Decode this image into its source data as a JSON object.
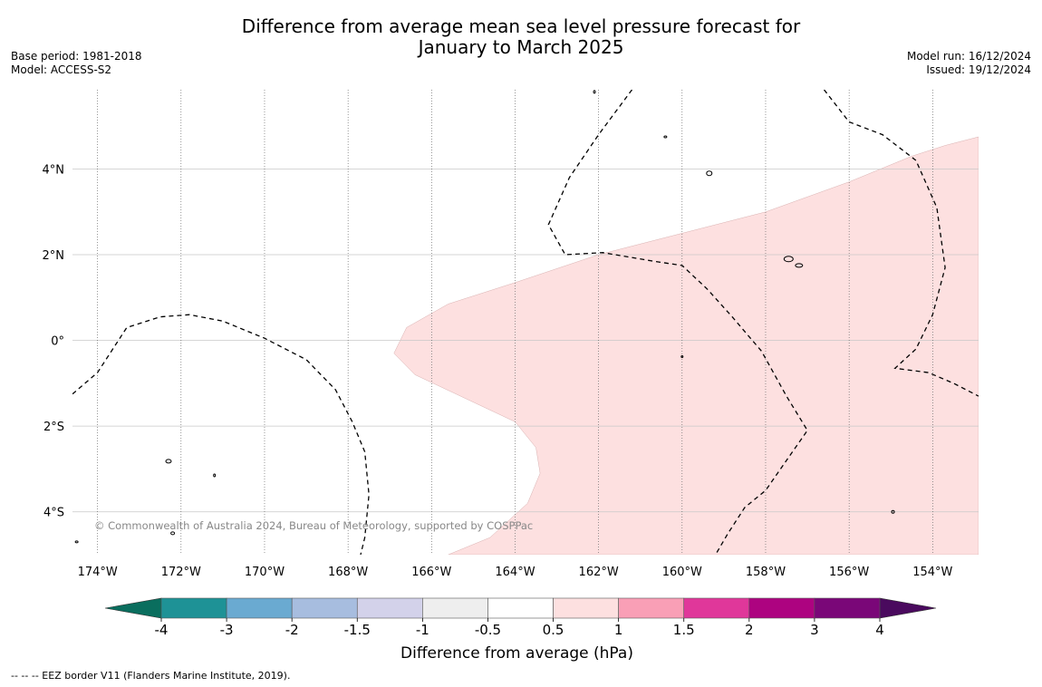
{
  "title": {
    "line1": "Difference from average mean sea level pressure forecast for",
    "line2": "January to March 2025"
  },
  "meta_left": {
    "base_period": "Base period: 1981-2018",
    "model": "Model: ACCESS-S2"
  },
  "meta_right": {
    "model_run": "Model run: 16/12/2024",
    "issued": "Issued: 19/12/2024"
  },
  "map": {
    "lon_range": [
      -174.6,
      -152.9
    ],
    "lat_range": [
      -5.0,
      5.85
    ],
    "lon_ticks": [
      {
        "value": -174,
        "label": "174°W"
      },
      {
        "value": -172,
        "label": "172°W"
      },
      {
        "value": -170,
        "label": "170°W"
      },
      {
        "value": -168,
        "label": "168°W"
      },
      {
        "value": -166,
        "label": "166°W"
      },
      {
        "value": -164,
        "label": "164°W"
      },
      {
        "value": -162,
        "label": "162°W"
      },
      {
        "value": -160,
        "label": "160°W"
      },
      {
        "value": -158,
        "label": "158°W"
      },
      {
        "value": -156,
        "label": "156°W"
      },
      {
        "value": -154,
        "label": "154°W"
      }
    ],
    "lat_ticks": [
      {
        "value": 4,
        "label": "4°N"
      },
      {
        "value": 2,
        "label": "2°N"
      },
      {
        "value": 0,
        "label": "0°"
      },
      {
        "value": -2,
        "label": "2°S"
      },
      {
        "value": -4,
        "label": "4°S"
      }
    ],
    "anomaly_region": {
      "category": "0.5 to 1",
      "color": "#fde0e0",
      "boundary": [
        [
          -165.6,
          -5.0
        ],
        [
          -164.6,
          -4.6
        ],
        [
          -163.7,
          -3.8
        ],
        [
          -163.4,
          -3.1
        ],
        [
          -163.5,
          -2.5
        ],
        [
          -164.0,
          -1.9
        ],
        [
          -166.4,
          -0.8
        ],
        [
          -166.9,
          -0.3
        ],
        [
          -166.6,
          0.3
        ],
        [
          -165.6,
          0.85
        ],
        [
          -164.0,
          1.35
        ],
        [
          -162.0,
          2.0
        ],
        [
          -160.0,
          2.5
        ],
        [
          -158.0,
          3.0
        ],
        [
          -156.0,
          3.7
        ],
        [
          -154.5,
          4.3
        ],
        [
          -153.7,
          4.55
        ],
        [
          -152.9,
          4.75
        ],
        [
          -152.9,
          -5.0
        ]
      ]
    },
    "eez_lines": [
      [
        [
          -174.6,
          -1.25
        ],
        [
          -174.0,
          -0.75
        ],
        [
          -173.3,
          0.3
        ],
        [
          -172.5,
          0.55
        ],
        [
          -171.8,
          0.6
        ],
        [
          -171.0,
          0.45
        ],
        [
          -170.0,
          0.05
        ],
        [
          -169.0,
          -0.45
        ],
        [
          -168.3,
          -1.15
        ],
        [
          -167.9,
          -1.9
        ],
        [
          -167.6,
          -2.6
        ],
        [
          -167.5,
          -3.6
        ],
        [
          -167.6,
          -4.6
        ],
        [
          -167.7,
          -5.0
        ]
      ],
      [
        [
          -161.2,
          5.85
        ],
        [
          -162.0,
          4.8
        ],
        [
          -162.7,
          3.8
        ],
        [
          -163.2,
          2.7
        ],
        [
          -162.8,
          2.0
        ],
        [
          -161.9,
          2.05
        ],
        [
          -160.7,
          1.85
        ],
        [
          -160.0,
          1.75
        ],
        [
          -159.4,
          1.2
        ],
        [
          -158.8,
          0.55
        ],
        [
          -158.1,
          -0.25
        ],
        [
          -157.5,
          -1.3
        ],
        [
          -157.0,
          -2.1
        ],
        [
          -157.5,
          -2.8
        ],
        [
          -158.0,
          -3.5
        ],
        [
          -158.5,
          -3.9
        ],
        [
          -158.9,
          -4.5
        ],
        [
          -159.2,
          -5.0
        ]
      ],
      [
        [
          -156.6,
          5.85
        ],
        [
          -156.0,
          5.1
        ],
        [
          -155.2,
          4.8
        ],
        [
          -154.4,
          4.2
        ],
        [
          -153.9,
          3.1
        ],
        [
          -153.7,
          1.7
        ],
        [
          -154.0,
          0.6
        ],
        [
          -154.4,
          -0.2
        ],
        [
          -154.9,
          -0.65
        ],
        [
          -154.1,
          -0.75
        ],
        [
          -153.5,
          -1.0
        ],
        [
          -152.9,
          -1.3
        ]
      ]
    ],
    "islands": [
      {
        "lon": -172.3,
        "lat": -2.82,
        "rx": 3,
        "ry": 2
      },
      {
        "lon": -171.2,
        "lat": -3.15,
        "rx": 1,
        "ry": 1.5
      },
      {
        "lon": -172.2,
        "lat": -4.5,
        "rx": 2,
        "ry": 1.5
      },
      {
        "lon": -174.5,
        "lat": -4.7,
        "rx": 1.5,
        "ry": 1
      },
      {
        "lon": -162.1,
        "lat": 5.8,
        "rx": 1,
        "ry": 1.5
      },
      {
        "lon": -160.4,
        "lat": 4.75,
        "rx": 1.5,
        "ry": 1
      },
      {
        "lon": -159.35,
        "lat": 3.9,
        "rx": 3,
        "ry": 2.5
      },
      {
        "lon": -157.45,
        "lat": 1.9,
        "rx": 5,
        "ry": 3
      },
      {
        "lon": -157.2,
        "lat": 1.75,
        "rx": 4,
        "ry": 2
      },
      {
        "lon": -160.0,
        "lat": -0.38,
        "rx": 1,
        "ry": 1
      },
      {
        "lon": -154.95,
        "lat": -4.0,
        "rx": 1.5,
        "ry": 1.5
      }
    ],
    "copyright": "© Commonwealth of Australia 2024, Bureau of Meteorology, supported by COSPPac"
  },
  "colorbar": {
    "label": "Difference from average (hPa)",
    "under_color": "#0a6e5e",
    "over_color": "#4a0a5e",
    "bins": [
      {
        "color": "#1e9296"
      },
      {
        "color": "#6aaad1"
      },
      {
        "color": "#a7bddf"
      },
      {
        "color": "#d3d2ea"
      },
      {
        "color": "#eeeeee"
      },
      {
        "color": "#ffffff"
      },
      {
        "color": "#fde0e0"
      },
      {
        "color": "#f99fb6"
      },
      {
        "color": "#e0379a"
      },
      {
        "color": "#ad0380"
      },
      {
        "color": "#7a0778"
      }
    ],
    "ticks": [
      "-4",
      "-3",
      "-2",
      "-1.5",
      "-1",
      "-0.5",
      "0.5",
      "1",
      "1.5",
      "2",
      "3",
      "4"
    ]
  },
  "footer": "--  --  -- EEZ border V11 (Flanders Marine Institute, 2019)."
}
